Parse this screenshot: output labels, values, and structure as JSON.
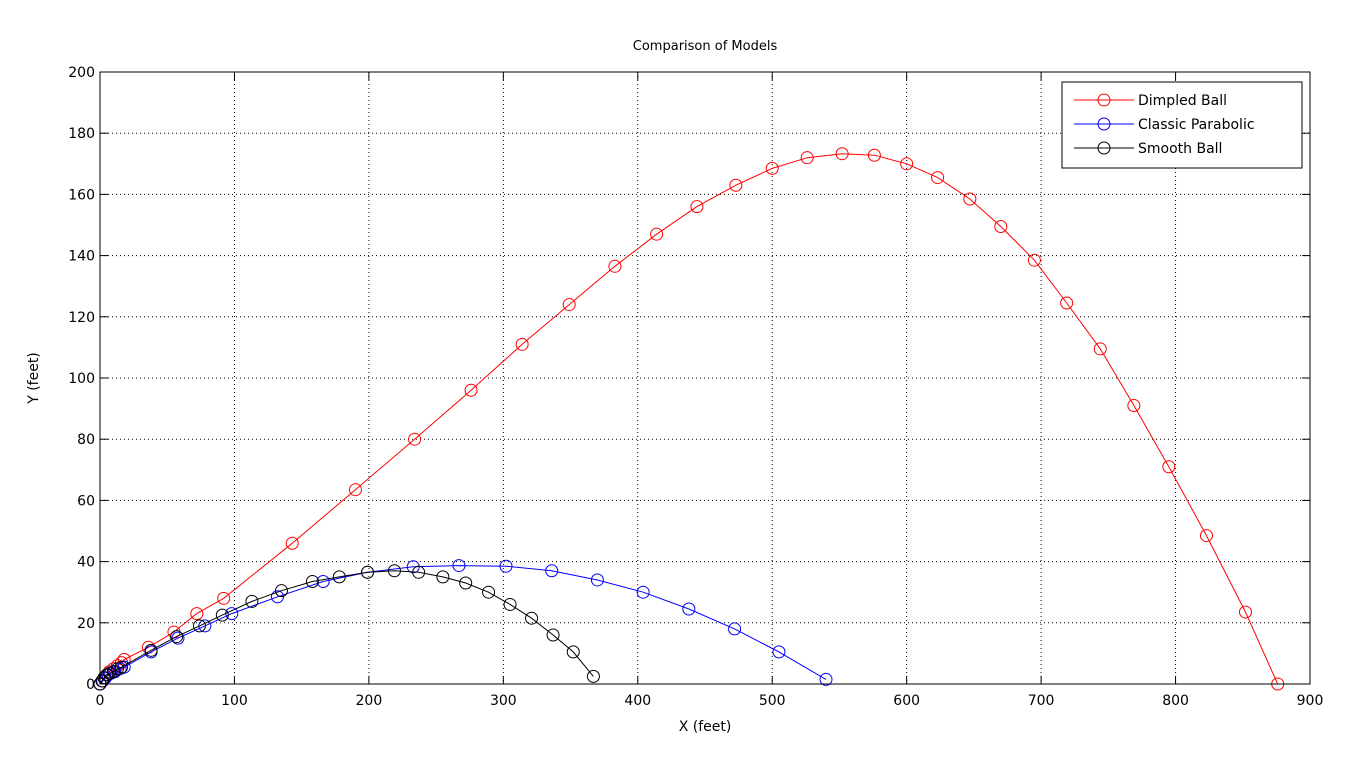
{
  "chart_data": {
    "type": "line",
    "title": "Comparison of Models",
    "xlabel": "X (feet)",
    "ylabel": "Y (feet)",
    "xlim": [
      0,
      900
    ],
    "ylim": [
      0,
      200
    ],
    "xticks": [
      0,
      100,
      200,
      300,
      400,
      500,
      600,
      700,
      800,
      900
    ],
    "yticks": [
      0,
      20,
      40,
      60,
      80,
      100,
      120,
      140,
      160,
      180,
      200
    ],
    "grid": true,
    "legend_position": "top-right",
    "marker": "circle",
    "series": [
      {
        "name": "Dimpled Ball",
        "color": "#ff0000",
        "x": [
          0,
          1.5,
          3,
          5,
          7,
          10,
          13,
          16,
          18,
          36,
          55,
          72,
          92,
          143,
          190,
          234,
          276,
          314,
          349,
          383,
          414,
          444,
          473,
          500,
          526,
          552,
          576,
          600,
          623,
          647,
          670,
          695,
          719,
          744,
          769,
          795,
          823,
          852,
          876
        ],
        "y": [
          0,
          1,
          2,
          3,
          4,
          5,
          6,
          7,
          8,
          12,
          17,
          23,
          28,
          46,
          63.5,
          80,
          96,
          111,
          124,
          136.5,
          147,
          156,
          163,
          168.5,
          172,
          173.3,
          172.8,
          170,
          165.5,
          158.5,
          149.5,
          138.5,
          124.5,
          109.5,
          91,
          71,
          48.5,
          23.5,
          0
        ]
      },
      {
        "name": "Classic Parabolic",
        "color": "#0000ff",
        "x": [
          0,
          2,
          4,
          6,
          8,
          11,
          15,
          18,
          38,
          58,
          78,
          98,
          132,
          166,
          199,
          233,
          267,
          302,
          336,
          370,
          404,
          438,
          472,
          505,
          540
        ],
        "y": [
          0,
          1,
          2,
          3,
          3.5,
          4,
          5,
          5.5,
          10.5,
          15,
          19,
          23,
          28.5,
          33.5,
          36.5,
          38.3,
          38.7,
          38.5,
          37,
          34,
          30,
          24.5,
          18,
          10.5,
          1.5
        ]
      },
      {
        "name": "Smooth Ball",
        "color": "#000000",
        "x": [
          0,
          1.5,
          3,
          5,
          7,
          10,
          13,
          16,
          38,
          57,
          74,
          91,
          113,
          135,
          158,
          178,
          199,
          219,
          237,
          255,
          272,
          289,
          305,
          321,
          337,
          352,
          367
        ],
        "y": [
          0,
          1,
          2,
          3,
          3.5,
          4,
          5,
          5.5,
          11,
          15.5,
          19,
          22.5,
          27,
          30.5,
          33.5,
          35,
          36.5,
          37,
          36.5,
          35,
          33,
          30,
          26,
          21.5,
          16,
          10.5,
          2.5
        ]
      }
    ]
  }
}
